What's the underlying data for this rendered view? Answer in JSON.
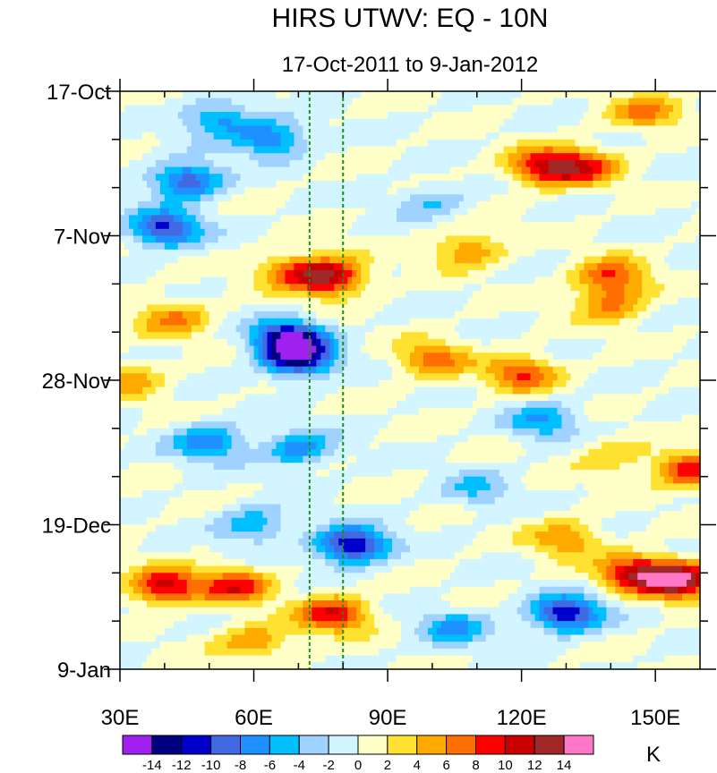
{
  "chart_data": {
    "type": "heatmap",
    "title": "HIRS UTWV: EQ - 10N",
    "subtitle": "17-Oct-2011 to 9-Jan-2012",
    "x_axis": {
      "range": [
        30,
        160
      ],
      "ticks": [
        30,
        60,
        90,
        120,
        150
      ],
      "tick_labels": [
        "30E",
        "60E",
        "90E",
        "120E",
        "150E"
      ]
    },
    "y_axis": {
      "range_days": [
        0,
        84
      ],
      "direction": "top-to-bottom",
      "ticks_days": [
        0,
        21,
        42,
        63,
        84
      ],
      "tick_labels": [
        "17-Oct",
        "7-Nov",
        "28-Nov",
        "19-Dec",
        "9-Jan"
      ]
    },
    "reference_lines_lon": [
      72.5,
      80
    ],
    "colorbar": {
      "unit": "K",
      "levels": [
        -14,
        -12,
        -10,
        -8,
        -6,
        -4,
        -2,
        0,
        2,
        4,
        6,
        8,
        10,
        12,
        14
      ],
      "labels": [
        "-14",
        "-12",
        "-10",
        "-8",
        "-6",
        "-4",
        "-2",
        "0",
        "2",
        "4",
        "6",
        "8",
        "10",
        "12",
        "14"
      ],
      "colors": [
        "#a020f0",
        "#000080",
        "#0000cd",
        "#4169e1",
        "#1e90ff",
        "#00bfff",
        "#a0d2ff",
        "#d2f5ff",
        "#ffffc8",
        "#ffe132",
        "#ffaa00",
        "#ff6e00",
        "#ff0000",
        "#c80000",
        "#a02828",
        "#ff78c8"
      ]
    },
    "features": [
      {
        "lon": 52,
        "day": 4,
        "value": -7
      },
      {
        "lon": 45,
        "day": 13,
        "value": -10
      },
      {
        "lon": 64,
        "day": 7,
        "value": -8
      },
      {
        "lon": 40,
        "day": 20,
        "value": -11
      },
      {
        "lon": 100,
        "day": 16,
        "value": -4
      },
      {
        "lon": 125,
        "day": 11,
        "value": 10
      },
      {
        "lon": 134,
        "day": 11,
        "value": 8
      },
      {
        "lon": 148,
        "day": 3,
        "value": 6
      },
      {
        "lon": 77,
        "day": 27,
        "value": 12
      },
      {
        "lon": 68,
        "day": 26,
        "value": 6
      },
      {
        "lon": 42,
        "day": 33,
        "value": 6
      },
      {
        "lon": 68,
        "day": 36,
        "value": -14
      },
      {
        "lon": 70,
        "day": 39,
        "value": -12
      },
      {
        "lon": 100,
        "day": 39,
        "value": 7
      },
      {
        "lon": 120,
        "day": 41,
        "value": 8
      },
      {
        "lon": 140,
        "day": 27,
        "value": 8
      },
      {
        "lon": 140,
        "day": 31,
        "value": 6
      },
      {
        "lon": 108,
        "day": 23,
        "value": 6
      },
      {
        "lon": 32,
        "day": 42,
        "value": 5
      },
      {
        "lon": 50,
        "day": 51,
        "value": -8
      },
      {
        "lon": 70,
        "day": 52,
        "value": -7
      },
      {
        "lon": 125,
        "day": 48,
        "value": -6
      },
      {
        "lon": 140,
        "day": 53,
        "value": 4
      },
      {
        "lon": 158,
        "day": 55,
        "value": 10
      },
      {
        "lon": 82,
        "day": 66,
        "value": -13
      },
      {
        "lon": 60,
        "day": 63,
        "value": -6
      },
      {
        "lon": 40,
        "day": 72,
        "value": 11
      },
      {
        "lon": 56,
        "day": 72,
        "value": 9
      },
      {
        "lon": 78,
        "day": 76,
        "value": 10
      },
      {
        "lon": 155,
        "day": 71,
        "value": 15
      },
      {
        "lon": 145,
        "day": 70,
        "value": 10
      },
      {
        "lon": 130,
        "day": 76,
        "value": -12
      },
      {
        "lon": 130,
        "day": 65,
        "value": 6
      },
      {
        "lon": 105,
        "day": 78,
        "value": -6
      },
      {
        "lon": 60,
        "day": 80,
        "value": 6
      },
      {
        "lon": 110,
        "day": 58,
        "value": -4
      }
    ]
  }
}
